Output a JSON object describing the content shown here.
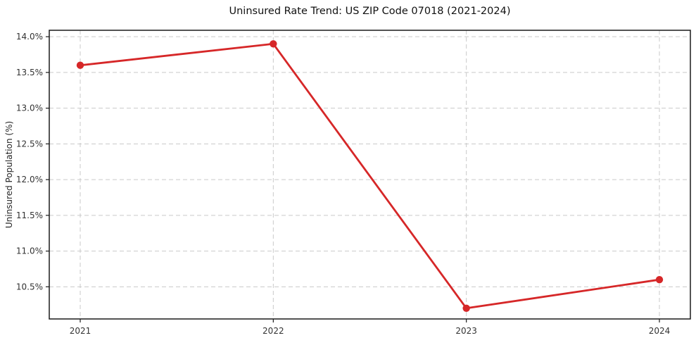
{
  "chart_data": {
    "type": "line",
    "title": "Uninsured Rate Trend: US ZIP Code 07018 (2021-2024)",
    "xlabel": "",
    "ylabel": "Uninsured Population (%)",
    "categories": [
      "2021",
      "2022",
      "2023",
      "2024"
    ],
    "series": [
      {
        "name": "Uninsured Rate",
        "values": [
          13.6,
          13.9,
          10.2,
          10.6
        ]
      }
    ],
    "y_ticks": [
      {
        "label": "10.5%",
        "value": 10.5
      },
      {
        "label": "11.0%",
        "value": 11.0
      },
      {
        "label": "11.5%",
        "value": 11.5
      },
      {
        "label": "12.0%",
        "value": 12.0
      },
      {
        "label": "12.5%",
        "value": 12.5
      },
      {
        "label": "13.0%",
        "value": 13.0
      },
      {
        "label": "13.5%",
        "value": 13.5
      },
      {
        "label": "14.0%",
        "value": 14.0
      }
    ],
    "ylim": [
      10.05,
      14.09
    ],
    "grid": "dashed-both-axes",
    "legend_position": "none",
    "colors": {
      "line": "#d62728",
      "marker": "#d62728",
      "grid": "#c9c9c9",
      "spine": "#1a1a1a",
      "tick_text": "#333333",
      "background": "#ffffff"
    }
  }
}
